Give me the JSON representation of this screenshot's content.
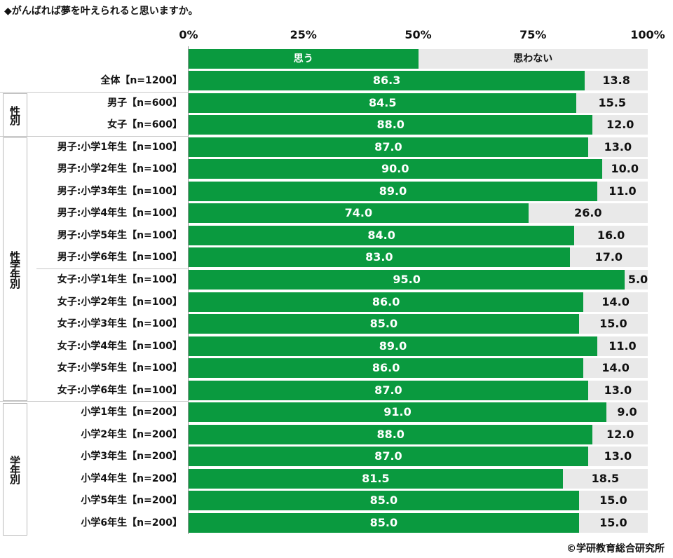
{
  "title": "◆がんばれば夢を叶えられると思いますか。",
  "credit": "©学研教育総合研究所",
  "chart_data": {
    "type": "bar",
    "stacked": true,
    "orientation": "horizontal",
    "title": "◆がんばれば夢を叶えられると思いますか。",
    "xlim": [
      0,
      100
    ],
    "ticks": [
      "0%",
      "25%",
      "50%",
      "75%",
      "100%"
    ],
    "legend": [
      "思う",
      "思わない"
    ],
    "colors": [
      "#0a9a3f",
      "#e9e9e9"
    ],
    "groups": [
      "性別",
      "性学年別",
      "学年別"
    ],
    "categories": [
      "全体【n=1200】",
      "男子【n=600】",
      "女子【n=600】",
      "男子:小学1年生【n=100】",
      "男子:小学2年生【n=100】",
      "男子:小学3年生【n=100】",
      "男子:小学4年生【n=100】",
      "男子:小学5年生【n=100】",
      "男子:小学6年生【n=100】",
      "女子:小学1年生【n=100】",
      "女子:小学2年生【n=100】",
      "女子:小学3年生【n=100】",
      "女子:小学4年生【n=100】",
      "女子:小学5年生【n=100】",
      "女子:小学6年生【n=100】",
      "小学1年生【n=200】",
      "小学2年生【n=200】",
      "小学3年生【n=200】",
      "小学4年生【n=200】",
      "小学5年生【n=200】",
      "小学6年生【n=200】"
    ],
    "series": [
      {
        "name": "思う",
        "values": [
          "86.3",
          "84.5",
          "88.0",
          "87.0",
          "90.0",
          "89.0",
          "74.0",
          "84.0",
          "83.0",
          "95.0",
          "86.0",
          "85.0",
          "89.0",
          "86.0",
          "87.0",
          "91.0",
          "88.0",
          "87.0",
          "81.5",
          "85.0",
          "85.0"
        ]
      },
      {
        "name": "思わない",
        "values": [
          "13.8",
          "15.5",
          "12.0",
          "13.0",
          "10.0",
          "11.0",
          "26.0",
          "16.0",
          "17.0",
          "5.0",
          "14.0",
          "15.0",
          "11.0",
          "14.0",
          "13.0",
          "9.0",
          "12.0",
          "13.0",
          "18.5",
          "15.0",
          "15.0"
        ]
      }
    ]
  }
}
